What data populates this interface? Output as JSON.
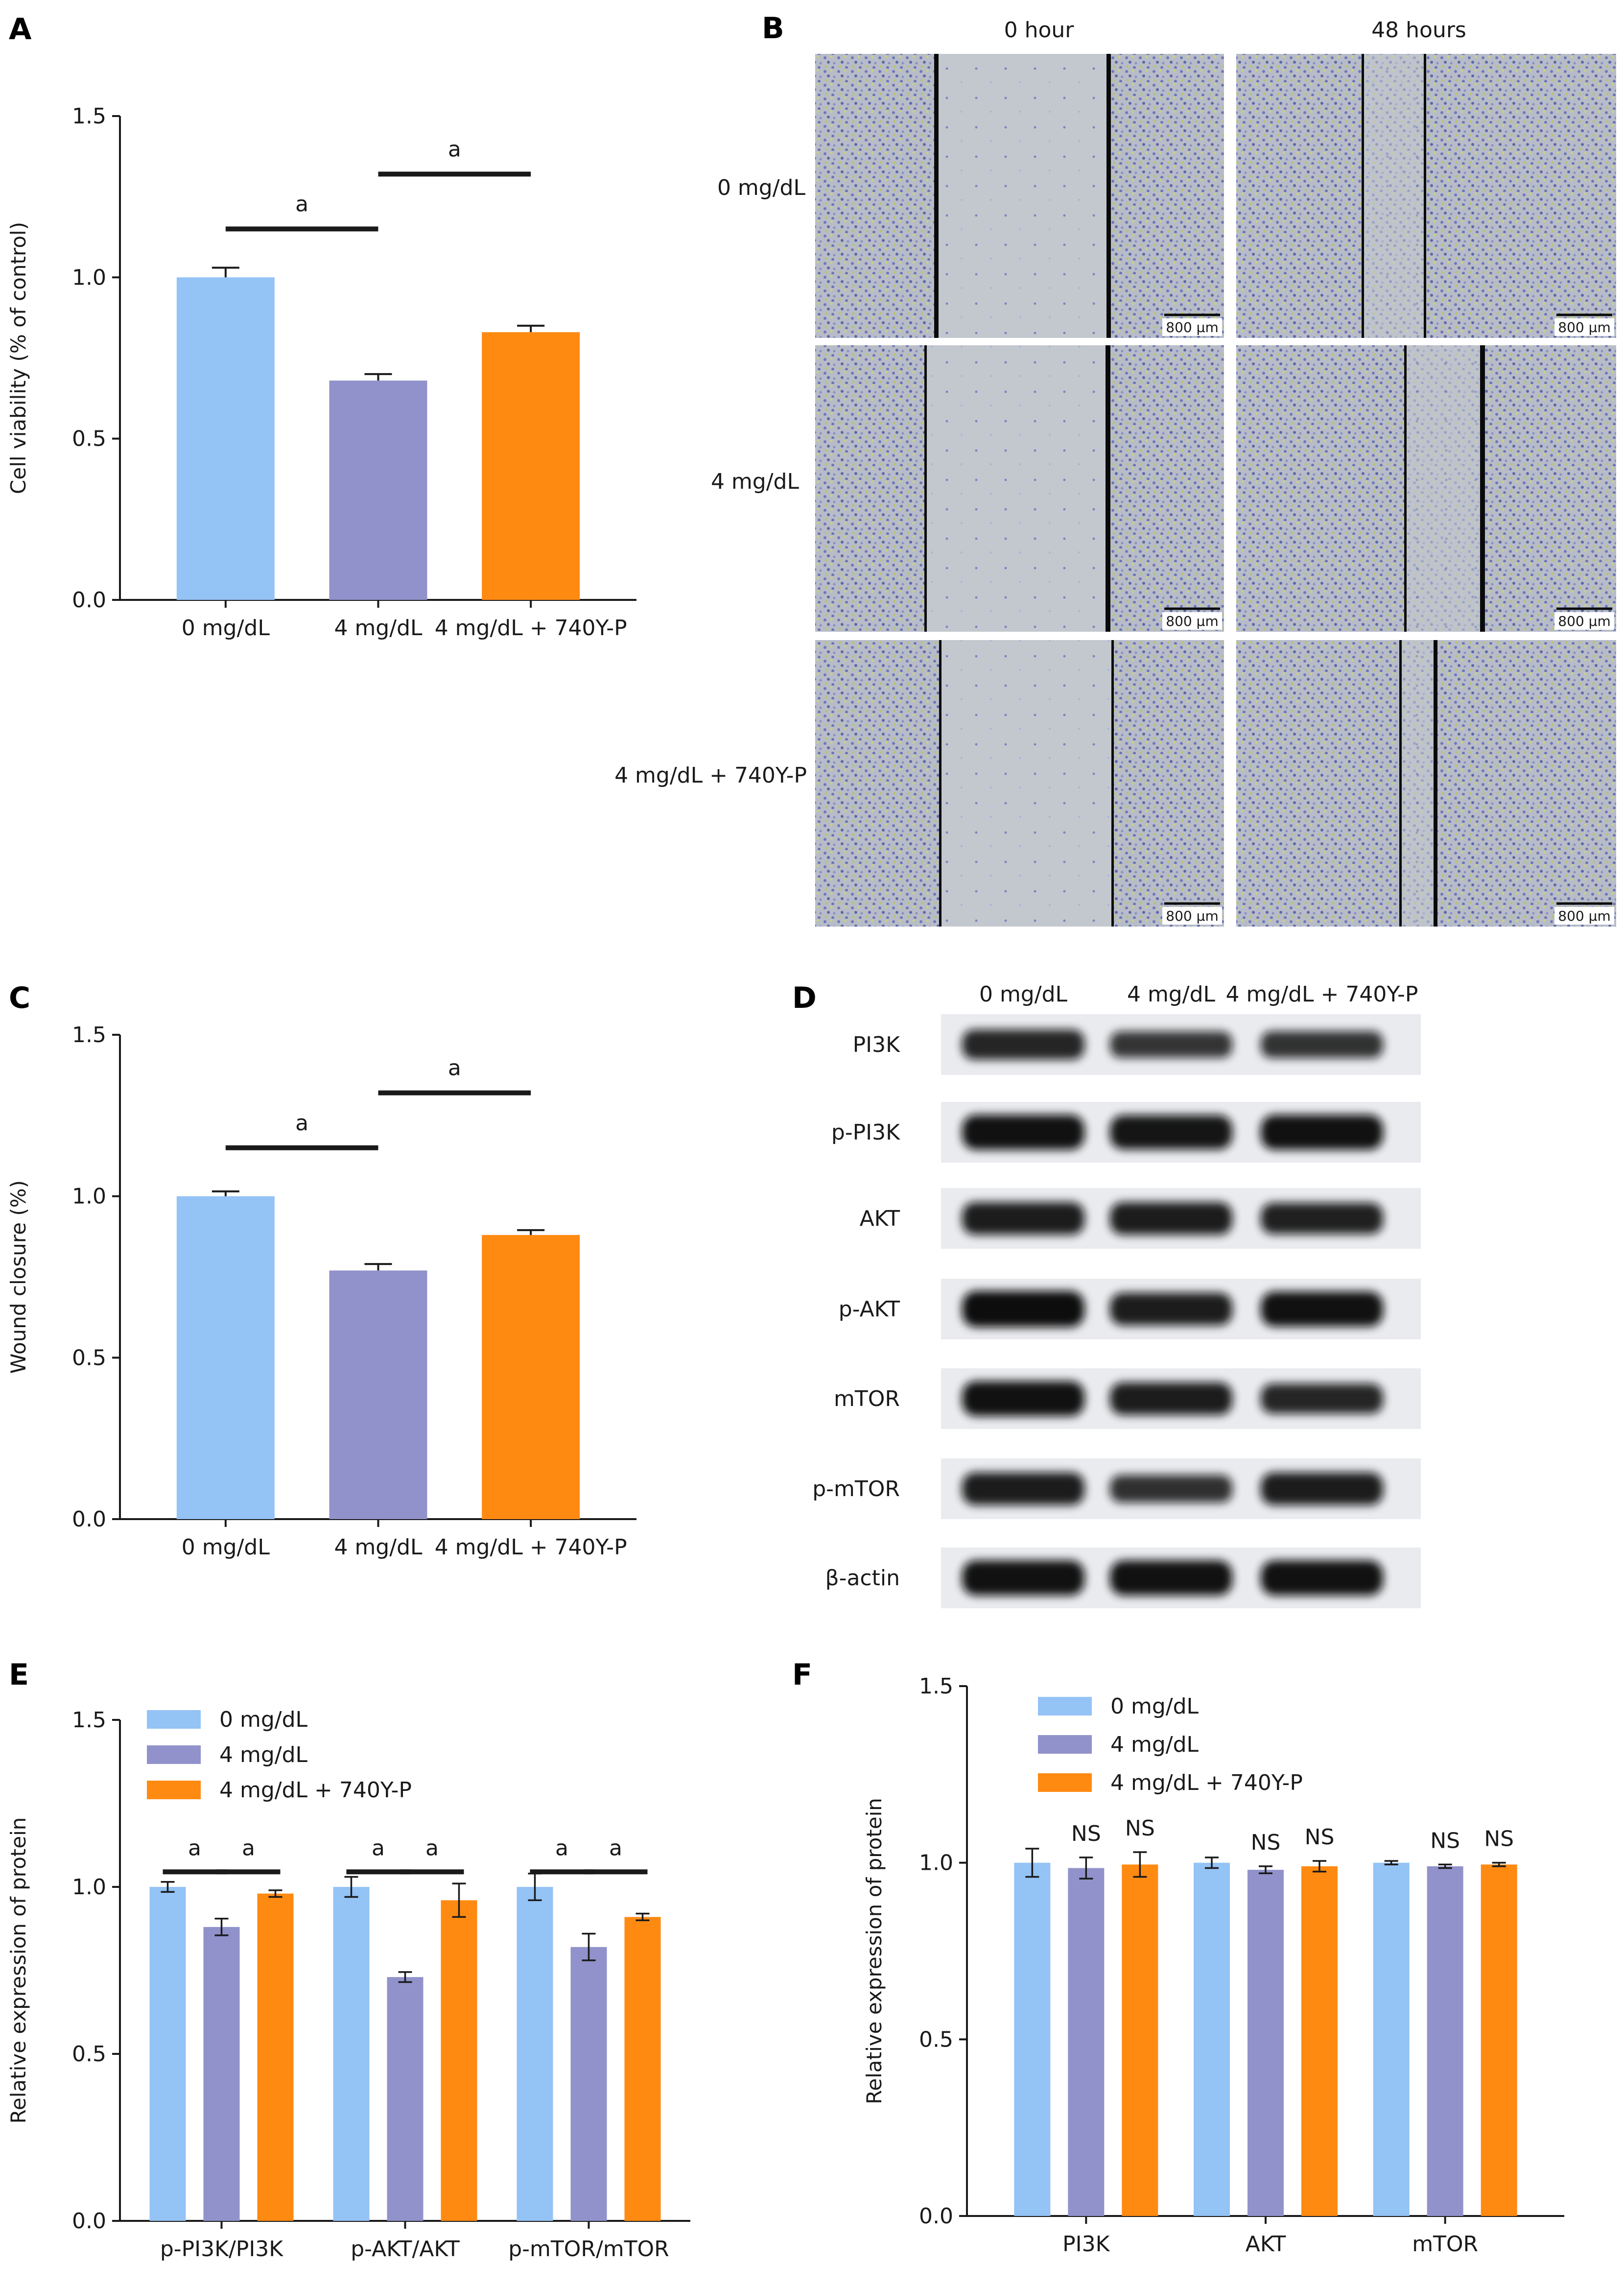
{
  "panels": {
    "A": "A",
    "B": "B",
    "C": "C",
    "D": "D",
    "E": "E",
    "F": "F"
  },
  "colors": {
    "group1": "#94C3F5",
    "group2": "#9192CB",
    "group3": "#FF8A12",
    "axis": "#1a1a1a"
  },
  "chart_data": [
    {
      "panel": "A",
      "type": "bar",
      "categories": [
        "0 mg/dL",
        "4 mg/dL",
        "4 mg/dL + 740Y-P"
      ],
      "values": [
        1.0,
        0.68,
        0.83
      ],
      "errors": [
        0.03,
        0.02,
        0.02
      ],
      "ylabel": "Cell viability (% of control)",
      "xlabel": "",
      "ylim": [
        0,
        1.5
      ],
      "yticks": [
        "0.0",
        "0.5",
        "1.0",
        "1.5"
      ],
      "significance": [
        {
          "from": 0,
          "to": 1,
          "label": "a"
        },
        {
          "from": 1,
          "to": 2,
          "label": "a"
        }
      ]
    },
    {
      "panel": "C",
      "type": "bar",
      "categories": [
        "0 mg/dL",
        "4 mg/dL",
        "4 mg/dL + 740Y-P"
      ],
      "values": [
        1.0,
        0.77,
        0.88
      ],
      "errors": [
        0.015,
        0.02,
        0.015
      ],
      "ylabel": "Wound closure (%)",
      "xlabel": "",
      "ylim": [
        0,
        1.5
      ],
      "yticks": [
        "0.0",
        "0.5",
        "1.0",
        "1.5"
      ],
      "significance": [
        {
          "from": 0,
          "to": 1,
          "label": "a"
        },
        {
          "from": 1,
          "to": 2,
          "label": "a"
        }
      ]
    },
    {
      "panel": "E",
      "type": "bar",
      "categories": [
        "p-PI3K/PI3K",
        "p-AKT/AKT",
        "p-mTOR/mTOR"
      ],
      "series": [
        {
          "name": "0 mg/dL",
          "values": [
            1.0,
            1.0,
            1.0
          ],
          "errors": [
            0.015,
            0.03,
            0.04
          ]
        },
        {
          "name": "4 mg/dL",
          "values": [
            0.88,
            0.73,
            0.82
          ],
          "errors": [
            0.025,
            0.015,
            0.04
          ]
        },
        {
          "name": "4 mg/dL + 740Y-P",
          "values": [
            0.98,
            0.96,
            0.91
          ],
          "errors": [
            0.01,
            0.05,
            0.01
          ]
        }
      ],
      "ylabel": "Relative expression of protein",
      "xlabel": "",
      "ylim": [
        0,
        1.5
      ],
      "yticks": [
        "0.0",
        "0.5",
        "1.0",
        "1.5"
      ],
      "legend": "top-left",
      "significance_label": "a"
    },
    {
      "panel": "F",
      "type": "bar",
      "categories": [
        "PI3K",
        "AKT",
        "mTOR"
      ],
      "series": [
        {
          "name": "0 mg/dL",
          "values": [
            1.0,
            1.0,
            1.0
          ],
          "errors": [
            0.04,
            0.015,
            0.005
          ]
        },
        {
          "name": "4 mg/dL",
          "values": [
            0.985,
            0.98,
            0.99
          ],
          "errors": [
            0.03,
            0.01,
            0.005
          ]
        },
        {
          "name": "4 mg/dL + 740Y-P",
          "values": [
            0.995,
            0.99,
            0.995
          ],
          "errors": [
            0.035,
            0.015,
            0.005
          ]
        }
      ],
      "ylabel": "Relative expression of protein",
      "xlabel": "",
      "ylim": [
        0,
        1.5
      ],
      "yticks": [
        "0.0",
        "0.5",
        "1.0",
        "1.5"
      ],
      "legend": "top-left",
      "significance_label": "NS"
    }
  ],
  "panel_b": {
    "columns": [
      "0 hour",
      "48 hours"
    ],
    "rows": [
      "0 mg/dL",
      "4 mg/dL",
      "4 mg/dL + 740Y-P"
    ],
    "scale_bar": "800 μm"
  },
  "panel_d": {
    "columns": [
      "0 mg/dL",
      "4 mg/dL",
      "4 mg/dL + 740Y-P"
    ],
    "proteins": [
      "PI3K",
      "p-PI3K",
      "AKT",
      "p-AKT",
      "mTOR",
      "p-mTOR",
      "β-actin"
    ],
    "band_intensity": [
      [
        0.75,
        0.6,
        0.62
      ],
      [
        0.95,
        0.92,
        0.95
      ],
      [
        0.85,
        0.85,
        0.8
      ],
      [
        1.0,
        0.85,
        0.95
      ],
      [
        0.95,
        0.85,
        0.75
      ],
      [
        0.85,
        0.65,
        0.85
      ],
      [
        0.95,
        0.95,
        0.95
      ]
    ]
  }
}
